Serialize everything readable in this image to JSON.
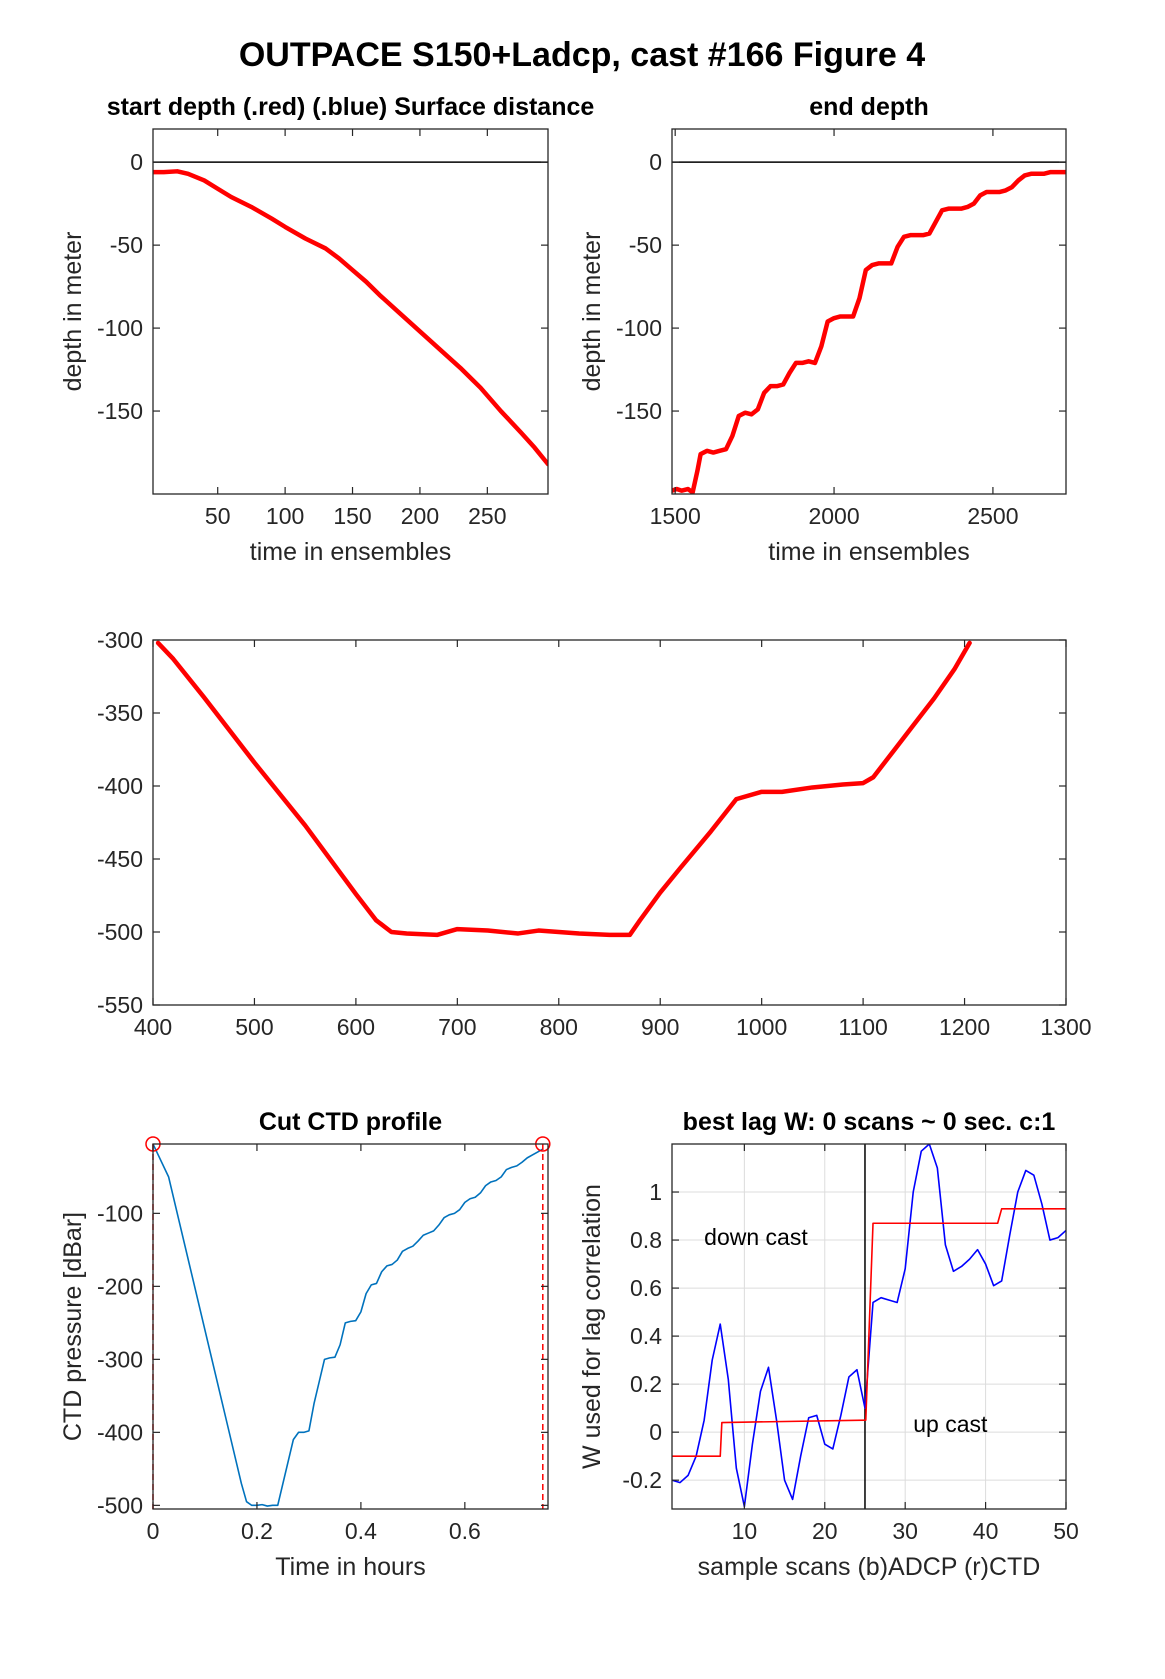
{
  "figure": {
    "title": "OUTPACE S150+Ladcp, cast #166    Figure 4"
  },
  "chart_data": [
    {
      "id": "start_depth",
      "type": "line",
      "title": "start depth (.red) (.blue) Surface distance",
      "xlabel": "time in ensembles",
      "ylabel": "depth in meter",
      "xlim": [
        2,
        295
      ],
      "ylim": [
        -200,
        20
      ],
      "xticks": [
        50,
        100,
        150,
        200,
        250
      ],
      "yticks": [
        0,
        -50,
        -100,
        -150
      ],
      "hline": 0,
      "series": [
        {
          "color": "#ff0000",
          "x": [
            2,
            10,
            20,
            28,
            40,
            50,
            60,
            75,
            90,
            100,
            115,
            130,
            140,
            150,
            160,
            170,
            185,
            200,
            215,
            230,
            245,
            260,
            275,
            285,
            295
          ],
          "y": [
            -6,
            -6,
            -5.5,
            -7,
            -11,
            -16,
            -21,
            -27,
            -34,
            -39,
            -46,
            -52,
            -58,
            -65,
            -72,
            -80,
            -91,
            -102,
            -113,
            -124,
            -136,
            -150,
            -163,
            -172,
            -182
          ]
        }
      ]
    },
    {
      "id": "end_depth",
      "type": "line",
      "title": "end depth",
      "xlabel": "time in ensembles",
      "ylabel": "depth in meter",
      "xlim": [
        1490,
        2730
      ],
      "ylim": [
        -200,
        20
      ],
      "xticks": [
        1500,
        2000,
        2500
      ],
      "yticks": [
        0,
        -50,
        -100,
        -150
      ],
      "hline": 0,
      "series": [
        {
          "color": "#ff0000",
          "x": [
            1490,
            1505,
            1520,
            1540,
            1555,
            1570,
            1580,
            1600,
            1620,
            1640,
            1660,
            1680,
            1700,
            1720,
            1740,
            1760,
            1780,
            1800,
            1820,
            1840,
            1860,
            1880,
            1900,
            1920,
            1940,
            1960,
            1980,
            2000,
            2020,
            2040,
            2060,
            2080,
            2100,
            2120,
            2140,
            2160,
            2180,
            2200,
            2220,
            2240,
            2260,
            2280,
            2300,
            2320,
            2340,
            2360,
            2380,
            2400,
            2420,
            2440,
            2460,
            2480,
            2500,
            2520,
            2540,
            2560,
            2580,
            2600,
            2620,
            2640,
            2660,
            2680,
            2700,
            2730
          ],
          "y": [
            -198,
            -197,
            -198,
            -197,
            -199,
            -186,
            -176,
            -174,
            -175,
            -174,
            -173,
            -165,
            -153,
            -151,
            -152,
            -149,
            -139,
            -135,
            -135,
            -134,
            -127,
            -121,
            -121,
            -120,
            -121,
            -111,
            -96,
            -94,
            -93,
            -93,
            -93,
            -82,
            -65,
            -62,
            -61,
            -61,
            -61,
            -51,
            -45,
            -44,
            -44,
            -44,
            -43,
            -36,
            -29,
            -28,
            -28,
            -28,
            -27,
            -25,
            -20,
            -18,
            -18,
            -18,
            -17,
            -15,
            -11,
            -8,
            -7,
            -7,
            -7,
            -6,
            -6,
            -6
          ]
        }
      ]
    },
    {
      "id": "bottom_depth",
      "type": "line",
      "title": "",
      "xlabel": "",
      "ylabel": "",
      "xlim": [
        400,
        1300
      ],
      "ylim": [
        -550,
        -300
      ],
      "xticks": [
        400,
        500,
        600,
        700,
        800,
        900,
        1000,
        1100,
        1200,
        1300
      ],
      "yticks": [
        -300,
        -350,
        -400,
        -450,
        -500,
        -550
      ],
      "series": [
        {
          "color": "#ff0000",
          "x": [
            405,
            420,
            450,
            500,
            550,
            600,
            620,
            635,
            650,
            680,
            700,
            730,
            760,
            780,
            800,
            820,
            850,
            870,
            880,
            900,
            920,
            950,
            975,
            1000,
            1020,
            1050,
            1080,
            1100,
            1110,
            1130,
            1150,
            1170,
            1190,
            1205
          ],
          "y": [
            -302,
            -313,
            -339,
            -384,
            -427,
            -474,
            -492,
            -500,
            -501,
            -502,
            -498,
            -499,
            -501,
            -499,
            -500,
            -501,
            -502,
            -502,
            -492,
            -473,
            -456,
            -431,
            -409,
            -404,
            -404,
            -401,
            -399,
            -398,
            -394,
            -376,
            -358,
            -340,
            -320,
            -302
          ]
        }
      ]
    },
    {
      "id": "cut_ctd_profile",
      "type": "line",
      "title": "Cut CTD profile",
      "xlabel": "Time in hours",
      "ylabel": "CTD pressure [dBar]",
      "xlim": [
        0,
        0.76
      ],
      "ylim": [
        -505,
        -5
      ],
      "xticks": [
        0,
        0.2,
        0.4,
        0.6
      ],
      "yticks": [
        -100,
        -200,
        -300,
        -400,
        -500
      ],
      "series": [
        {
          "color": "#0072bd",
          "x": [
            0,
            0.01,
            0.03,
            0.05,
            0.08,
            0.11,
            0.14,
            0.17,
            0.18,
            0.19,
            0.2,
            0.21,
            0.22,
            0.23,
            0.24,
            0.25,
            0.26,
            0.27,
            0.28,
            0.29,
            0.3,
            0.31,
            0.32,
            0.33,
            0.34,
            0.35,
            0.36,
            0.37,
            0.38,
            0.39,
            0.4,
            0.41,
            0.42,
            0.43,
            0.44,
            0.45,
            0.46,
            0.47,
            0.48,
            0.49,
            0.5,
            0.51,
            0.52,
            0.53,
            0.54,
            0.55,
            0.56,
            0.57,
            0.58,
            0.59,
            0.6,
            0.61,
            0.62,
            0.63,
            0.64,
            0.65,
            0.66,
            0.67,
            0.68,
            0.69,
            0.7,
            0.71,
            0.72,
            0.73,
            0.74,
            0.75
          ],
          "y": [
            -5,
            -20,
            -50,
            -110,
            -200,
            -290,
            -380,
            -470,
            -495,
            -500,
            -500,
            -499,
            -501,
            -500,
            -500,
            -470,
            -440,
            -410,
            -400,
            -400,
            -398,
            -360,
            -330,
            -300,
            -298,
            -297,
            -280,
            -250,
            -248,
            -247,
            -235,
            -210,
            -198,
            -196,
            -180,
            -172,
            -170,
            -164,
            -152,
            -148,
            -145,
            -138,
            -130,
            -127,
            -124,
            -116,
            -106,
            -102,
            -100,
            -95,
            -85,
            -80,
            -78,
            -72,
            -62,
            -57,
            -55,
            -50,
            -40,
            -37,
            -35,
            -30,
            -24,
            -20,
            -16,
            -12
          ]
        }
      ],
      "endpoints": [
        {
          "x": 0,
          "y": -5,
          "color": "#ff0000"
        },
        {
          "x": 0.75,
          "y": -5,
          "color": "#ff0000"
        }
      ],
      "dashed_verticals": [
        0,
        0.75
      ]
    },
    {
      "id": "best_lag",
      "type": "line",
      "title": "best lag W: 0 scans ~ 0 sec.  c:1",
      "xlabel": "sample scans (b)ADCP (r)CTD",
      "ylabel": "W used for lag correlation",
      "xlim": [
        1,
        50
      ],
      "ylim": [
        -0.32,
        1.2
      ],
      "xticks": [
        10,
        20,
        30,
        40,
        50
      ],
      "yticks": [
        -0.2,
        0,
        0.2,
        0.4,
        0.6,
        0.8,
        1
      ],
      "grid": true,
      "vline": 25,
      "annotations": [
        {
          "text": "down cast",
          "x": 5,
          "y": 0.78
        },
        {
          "text": "up cast",
          "x": 31,
          "y": 0.0
        }
      ],
      "series": [
        {
          "color": "#0000ff",
          "x": [
            1,
            2,
            3,
            4,
            5,
            6,
            7,
            8,
            9,
            10,
            11,
            12,
            13,
            14,
            15,
            16,
            17,
            18,
            19,
            20,
            21,
            22,
            23,
            24,
            25,
            26,
            27,
            28,
            29,
            30,
            31,
            32,
            33,
            34,
            35,
            36,
            37,
            38,
            39,
            40,
            41,
            42,
            43,
            44,
            45,
            46,
            47,
            48,
            49,
            50
          ],
          "y": [
            -0.2,
            -0.21,
            -0.18,
            -0.1,
            0.05,
            0.3,
            0.45,
            0.22,
            -0.15,
            -0.31,
            -0.05,
            0.17,
            0.27,
            0.05,
            -0.2,
            -0.28,
            -0.1,
            0.06,
            0.07,
            -0.05,
            -0.07,
            0.07,
            0.23,
            0.26,
            0.1,
            0.54,
            0.56,
            0.55,
            0.54,
            0.68,
            1.0,
            1.17,
            1.2,
            1.1,
            0.78,
            0.67,
            0.69,
            0.72,
            0.76,
            0.7,
            0.61,
            0.63,
            0.82,
            1.0,
            1.09,
            1.07,
            0.95,
            0.8,
            0.81,
            0.84
          ]
        },
        {
          "color": "#ff0000",
          "x": [
            1,
            7,
            7.2,
            24.9,
            25.1,
            26,
            41.5,
            42,
            50
          ],
          "y": [
            -0.1,
            -0.1,
            0.04,
            0.05,
            0.05,
            0.87,
            0.87,
            0.93,
            0.93
          ]
        }
      ]
    }
  ]
}
